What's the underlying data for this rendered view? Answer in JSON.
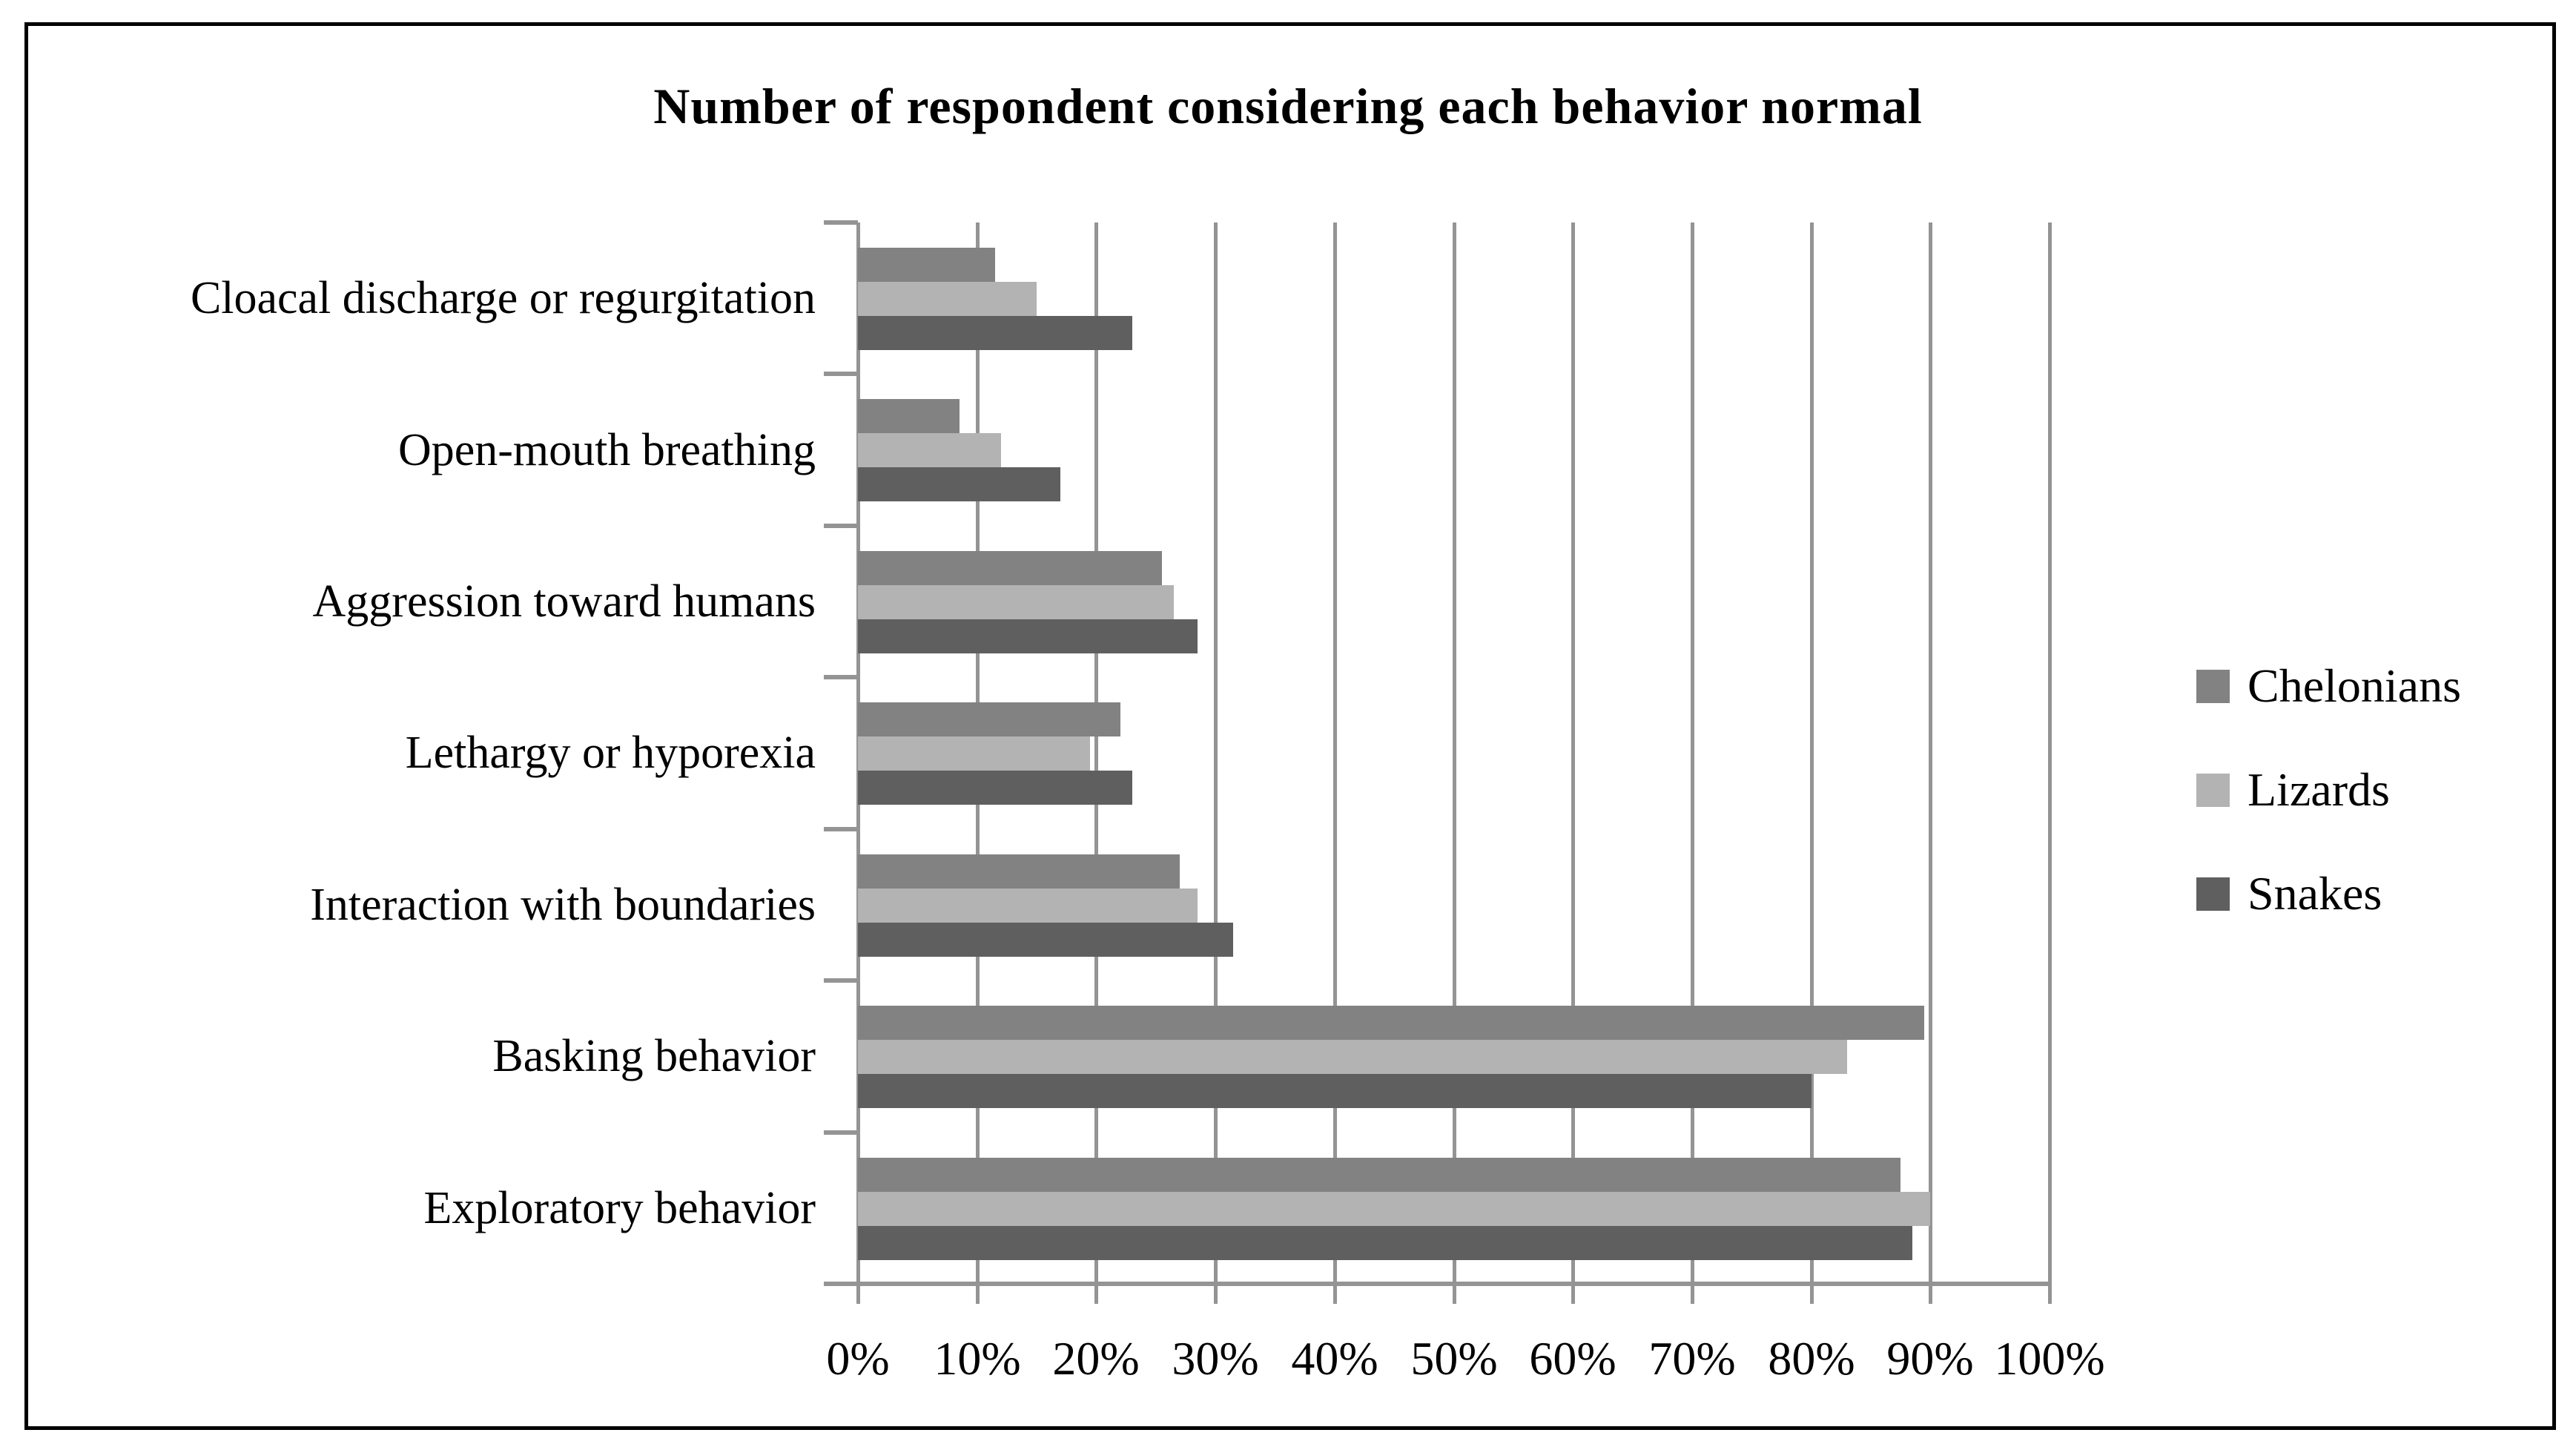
{
  "title": "Number of respondent considering each behavior normal",
  "colors": {
    "axis": "#949494",
    "frame": "#000000",
    "background": "#ffffff",
    "text": "#000000"
  },
  "chart_data": {
    "type": "bar",
    "orientation": "horizontal",
    "title": "Number of respondent considering each behavior normal",
    "categories": [
      "Cloacal discharge or regurgitation",
      "Open-mouth breathing",
      "Aggression toward humans",
      "Lethargy or hyporexia",
      "Interaction with boundaries",
      "Basking behavior",
      "Exploratory behavior"
    ],
    "series": [
      {
        "name": "Chelonians",
        "color": "#828282",
        "values": [
          11.5,
          8.5,
          25.5,
          22,
          27,
          89.5,
          87.5
        ]
      },
      {
        "name": "Lizards",
        "color": "#b3b3b3",
        "values": [
          15,
          12,
          26.5,
          19.5,
          28.5,
          83,
          90
        ]
      },
      {
        "name": "Snakes",
        "color": "#5f5f5f",
        "values": [
          23,
          17,
          28.5,
          23,
          31.5,
          80,
          88.5
        ]
      }
    ],
    "x_ticks": [
      "0%",
      "10%",
      "20%",
      "30%",
      "40%",
      "50%",
      "60%",
      "70%",
      "80%",
      "90%",
      "100%"
    ],
    "xlim": [
      0,
      100
    ],
    "xlabel": "",
    "ylabel": "",
    "grid": "vertical-major",
    "legend_position": "right"
  },
  "legend": {
    "items": [
      {
        "label": "Chelonians",
        "color": "#828282"
      },
      {
        "label": "Lizards",
        "color": "#b3b3b3"
      },
      {
        "label": "Snakes",
        "color": "#5f5f5f"
      }
    ]
  }
}
